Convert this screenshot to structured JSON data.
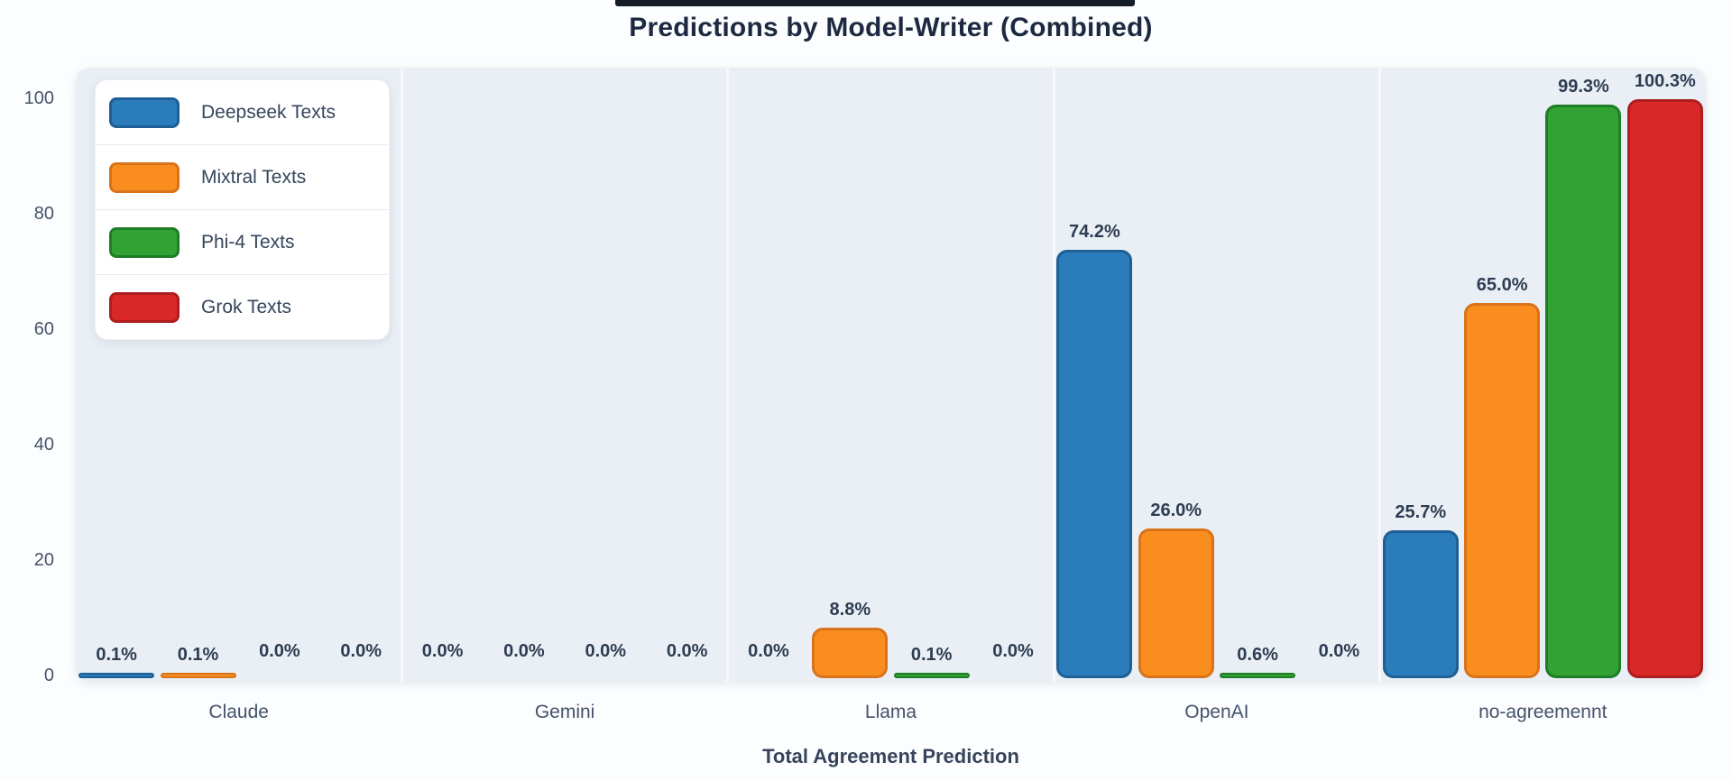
{
  "page": {
    "accent_bar_color": "#161d29"
  },
  "chart_data": {
    "type": "bar",
    "title": "Predictions by Model-Writer (Combined)",
    "xlabel": "Total Agreement Prediction",
    "ylabel": "",
    "categories": [
      "Claude",
      "Gemini",
      "Llama",
      "OpenAI",
      "no-agreemennt"
    ],
    "series": [
      {
        "name": "Deepseek Texts",
        "color": "#2b7cba",
        "border_color": "#1e5f96",
        "values": [
          0.1,
          0.0,
          0.0,
          74.2,
          25.7
        ],
        "labels": [
          "0.1%",
          "0.0%",
          "0.0%",
          "74.2%",
          "25.7%"
        ]
      },
      {
        "name": "Mixtral Texts",
        "color": "#f98d1e",
        "border_color": "#d8731b",
        "values": [
          0.1,
          0.0,
          8.8,
          26.0,
          65.0
        ],
        "labels": [
          "0.1%",
          "0.0%",
          "8.8%",
          "26.0%",
          "65.0%"
        ]
      },
      {
        "name": "Phi-4 Texts",
        "color": "#31a233",
        "border_color": "#1f7d26",
        "values": [
          0.0,
          0.0,
          0.1,
          0.6,
          99.3
        ],
        "labels": [
          "0.0%",
          "0.0%",
          "0.1%",
          "0.6%",
          "99.3%"
        ]
      },
      {
        "name": "Grok Texts",
        "color": "#da2728",
        "border_color": "#ac1e1f",
        "values": [
          0.0,
          0.0,
          0.0,
          0.0,
          100.3
        ],
        "labels": [
          "0.0%",
          "0.0%",
          "0.0%",
          "0.0%",
          "100.3%"
        ]
      }
    ],
    "y_ticks": [
      0,
      20,
      40,
      60,
      80,
      100
    ],
    "ylim": [
      0,
      106
    ],
    "grid": false,
    "legend_position": "upper-left"
  }
}
